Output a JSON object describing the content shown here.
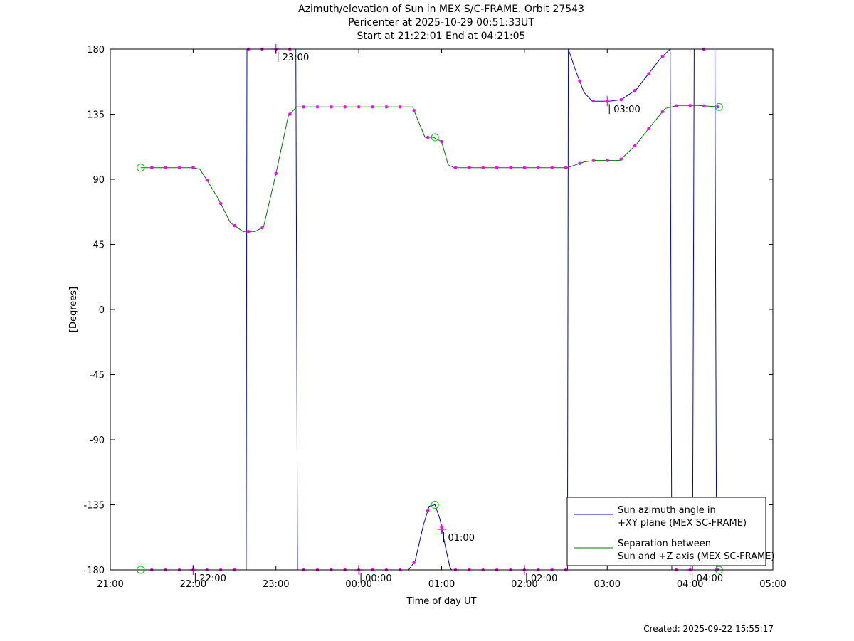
{
  "chart_data": {
    "type": "line",
    "title": "Azimuth/elevation of Sun in MEX S/C-FRAME.  Orbit 27543",
    "subtitle": [
      "Pericenter at 2025-10-29 00:51:33UT",
      "Start at 21:22:01 End at 04:21:05"
    ],
    "xlabel": "Time of day UT",
    "ylabel": "[Degrees]",
    "x_unit": "hours since 21:00 UT",
    "xlim": [
      0,
      8
    ],
    "ylim": [
      -180,
      180
    ],
    "x_ticks": [
      {
        "value": 0,
        "label": "21:00"
      },
      {
        "value": 1,
        "label": "22:00"
      },
      {
        "value": 2,
        "label": "23:00"
      },
      {
        "value": 3,
        "label": "00:00"
      },
      {
        "value": 4,
        "label": "01:00"
      },
      {
        "value": 5,
        "label": "02:00"
      },
      {
        "value": 6,
        "label": "03:00"
      },
      {
        "value": 7,
        "label": "04:00"
      },
      {
        "value": 8,
        "label": "05:00"
      }
    ],
    "y_ticks": [
      180,
      135,
      90,
      45,
      0,
      -45,
      -90,
      -135,
      -180
    ],
    "legend_position": "bottom-right",
    "series": [
      {
        "name": "Sun azimuth angle in +XY plane (MEX SC-FRAME)",
        "color": "#0000cc",
        "points": [
          [
            0.367,
            -180
          ],
          [
            1.64,
            -180
          ],
          [
            1.65,
            180
          ],
          [
            2.24,
            180
          ],
          [
            2.26,
            -180
          ],
          [
            3.6,
            -180
          ],
          [
            3.68,
            -174
          ],
          [
            3.78,
            -149
          ],
          [
            3.85,
            -136
          ],
          [
            3.92,
            -135
          ],
          [
            3.98,
            -145
          ],
          [
            4.05,
            -165
          ],
          [
            4.1,
            -178
          ],
          [
            4.12,
            -180
          ],
          [
            5.52,
            -180
          ],
          [
            5.53,
            180
          ],
          [
            5.62,
            165
          ],
          [
            5.72,
            150
          ],
          [
            5.82,
            144
          ],
          [
            5.92,
            144
          ],
          [
            6.02,
            144
          ],
          [
            6.17,
            145
          ],
          [
            6.35,
            152
          ],
          [
            6.5,
            163
          ],
          [
            6.65,
            174
          ],
          [
            6.76,
            180
          ],
          [
            6.78,
            -180
          ],
          [
            7.03,
            -180
          ],
          [
            7.05,
            180
          ],
          [
            7.3,
            180
          ],
          [
            7.32,
            -180
          ],
          [
            7.35,
            -180
          ]
        ]
      },
      {
        "name": "Separation between Sun and +Z axis (MEX SC-FRAME)",
        "color": "#007700",
        "points": [
          [
            0.367,
            98
          ],
          [
            1.0,
            98
          ],
          [
            1.08,
            97
          ],
          [
            1.15,
            91
          ],
          [
            1.3,
            77
          ],
          [
            1.45,
            60
          ],
          [
            1.6,
            54
          ],
          [
            1.75,
            54
          ],
          [
            1.85,
            57
          ],
          [
            2.0,
            94
          ],
          [
            2.15,
            134
          ],
          [
            2.25,
            140
          ],
          [
            2.5,
            140
          ],
          [
            3.0,
            140
          ],
          [
            3.5,
            140
          ],
          [
            3.65,
            140
          ],
          [
            3.72,
            130
          ],
          [
            3.8,
            119
          ],
          [
            3.9,
            119
          ],
          [
            4.0,
            116
          ],
          [
            4.08,
            100
          ],
          [
            4.15,
            98
          ],
          [
            5.0,
            98
          ],
          [
            5.52,
            98
          ],
          [
            5.72,
            102
          ],
          [
            5.85,
            103
          ],
          [
            6.15,
            103
          ],
          [
            6.35,
            114
          ],
          [
            6.5,
            125
          ],
          [
            6.7,
            139
          ],
          [
            6.85,
            141
          ],
          [
            7.1,
            141
          ],
          [
            7.35,
            140
          ]
        ]
      }
    ],
    "orbit_time_labels": [
      {
        "text": "22:00",
        "x": 1.0,
        "y": -180
      },
      {
        "text": "23:00",
        "x": 2.0,
        "y": 180
      },
      {
        "text": "00:00",
        "x": 3.0,
        "y": -180
      },
      {
        "text": "01:00",
        "x": 4.0,
        "y": -152
      },
      {
        "text": "02:00",
        "x": 5.0,
        "y": -180
      },
      {
        "text": "03:00",
        "x": 6.0,
        "y": 144
      },
      {
        "text": "04:00",
        "x": 7.0,
        "y": -180
      }
    ],
    "start_end_markers": [
      {
        "x": 0.367,
        "y": 98
      },
      {
        "x": 0.367,
        "y": -180
      },
      {
        "x": 3.92,
        "y": -135
      },
      {
        "x": 3.92,
        "y": 119
      },
      {
        "x": 7.35,
        "y": 140
      },
      {
        "x": 7.35,
        "y": -180
      }
    ],
    "created": "Created: 2025-09-22 15:55:17"
  }
}
